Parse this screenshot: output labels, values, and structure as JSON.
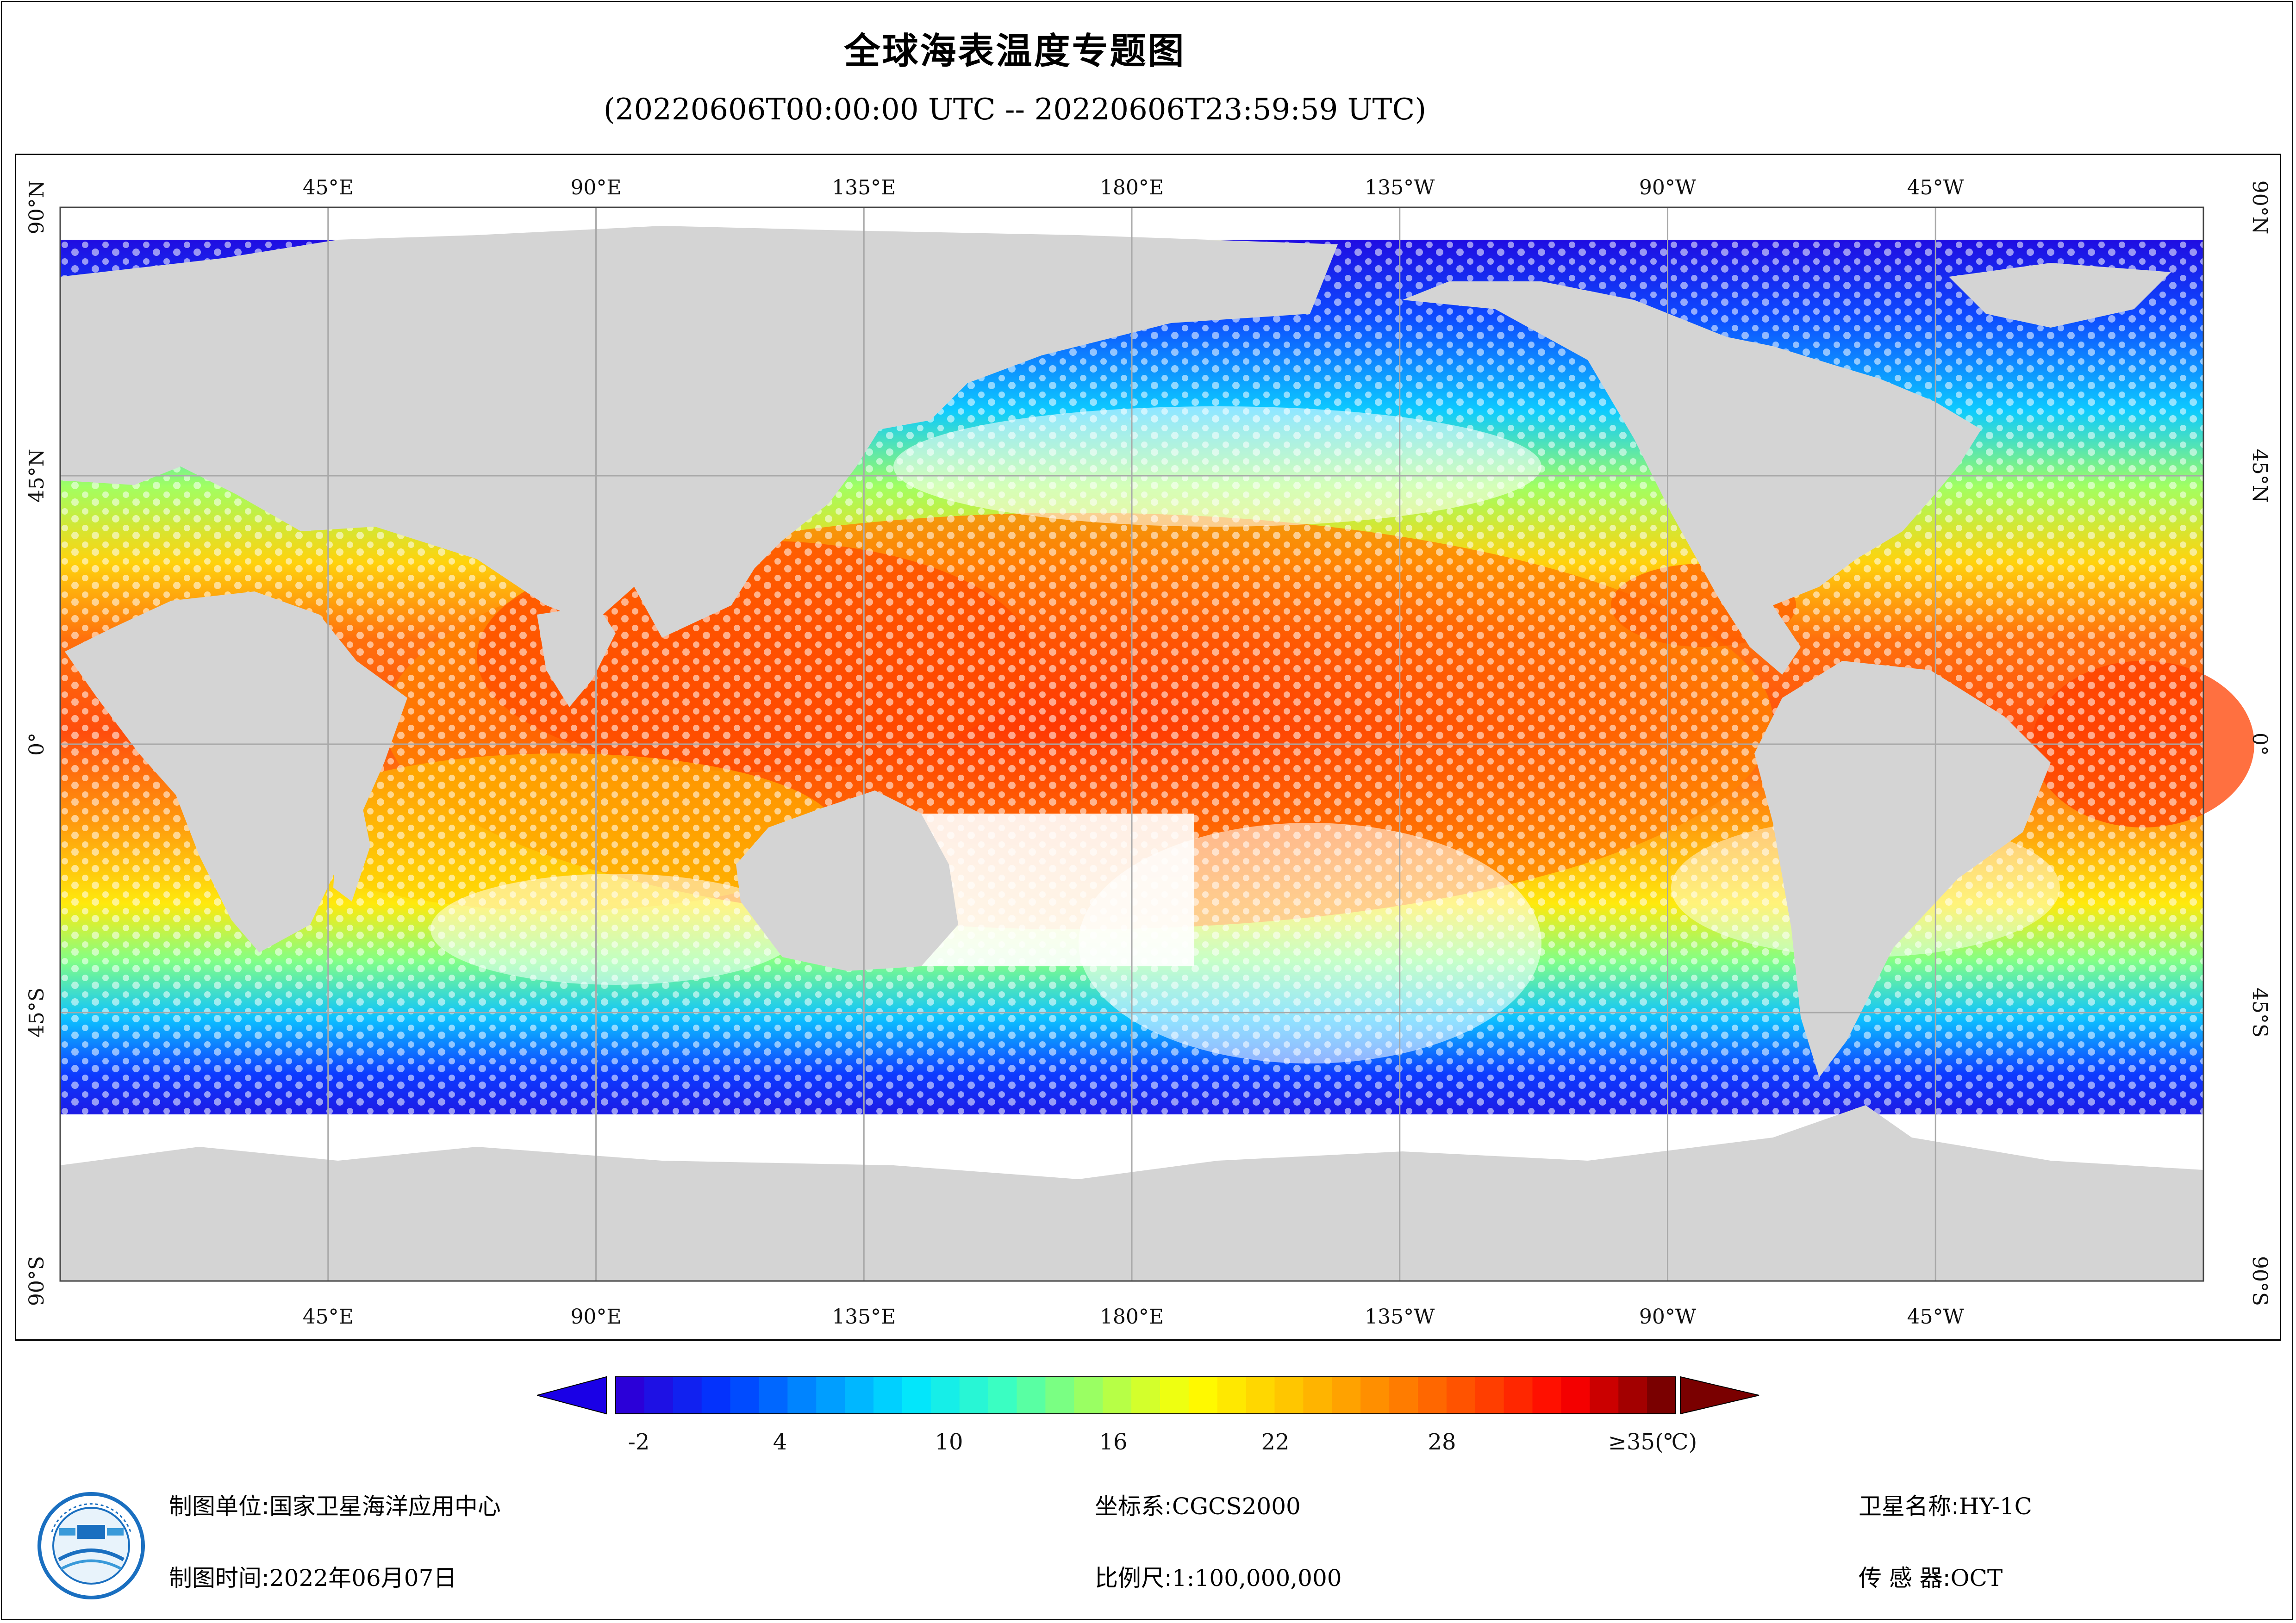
{
  "title": "全球海表温度专题图",
  "subtitle": "(20220606T00:00:00 UTC -- 20220606T23:59:59 UTC)",
  "map": {
    "top_lon_labels": [
      "45°E",
      "90°E",
      "135°E",
      "180°E",
      "135°W",
      "90°W",
      "45°W"
    ],
    "bottom_lon_labels": [
      "45°E",
      "90°E",
      "135°E",
      "180°E",
      "135°W",
      "90°W",
      "45°W"
    ],
    "lat_labels": [
      "90°N",
      "45°N",
      "0°",
      "45°S",
      "90°S"
    ],
    "land_color": "#d4d4d4",
    "nodata_color": "#ffffff",
    "graticule_color": "#a8a8a8"
  },
  "colorbar": {
    "labels": [
      "-2",
      "4",
      "10",
      "16",
      "22",
      "28",
      "≥35(℃)"
    ],
    "min": -2,
    "max": 35,
    "colors": [
      "#2b00d8",
      "#0036ff",
      "#0093ff",
      "#00e4ff",
      "#3cffc0",
      "#a6ff57",
      "#ffff00",
      "#ffc800",
      "#ff8c00",
      "#ff4a00",
      "#ff0000",
      "#7a0000"
    ],
    "under_color": "#1a00e6",
    "over_color": "#7a0000"
  },
  "footer": {
    "unit_label": "制图单位:",
    "unit_value": "国家卫星海洋应用中心",
    "time_label": "制图时间:",
    "time_value": "2022年06月07日",
    "coord_label": "坐标系:",
    "coord_value": "CGCS2000",
    "scale_label": "比例尺:",
    "scale_value": "1:100,000,000",
    "sat_label": "卫星名称:",
    "sat_value": "HY-1C",
    "sensor_label": "传 感 器:",
    "sensor_value": "OCT"
  },
  "logo": {
    "icon": "nsoas-logo-icon",
    "text_top": "国家卫星海洋应用中心",
    "text_bottom": "NATIONAL SATELLITE OCEAN APPLICATION SERVICE"
  }
}
